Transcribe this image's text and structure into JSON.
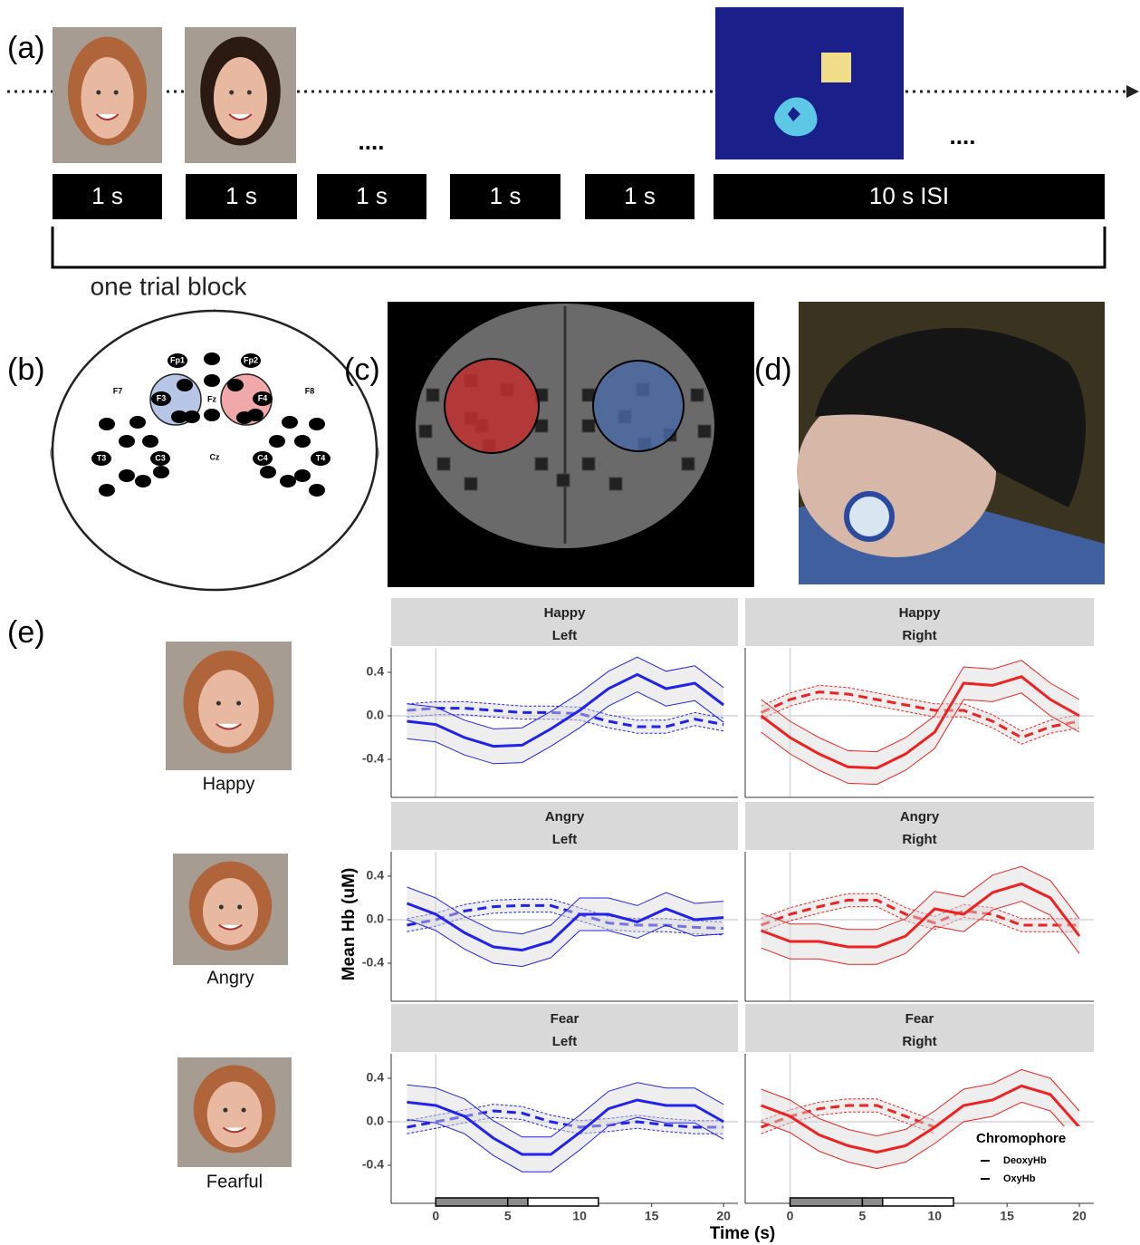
{
  "panel_a": {
    "label": "(a)",
    "durations": [
      "1 s",
      "1 s",
      "1 s",
      "1 s",
      "1 s",
      "10 s ISI"
    ],
    "ellipsis": [
      "....",
      "...."
    ],
    "block_label": "one trial block"
  },
  "panel_b": {
    "label": "(b)",
    "electrodes": [
      "Fp1",
      "Fp2",
      "F7",
      "F3",
      "Fz",
      "F4",
      "F8",
      "T3",
      "C3",
      "Cz",
      "C4",
      "T4"
    ]
  },
  "panel_c": {
    "label": "(c)"
  },
  "panel_d": {
    "label": "(d)"
  },
  "panel_e": {
    "label": "(e)",
    "faces": [
      "Happy",
      "Angry",
      "Fearful"
    ],
    "xlabel": "Time (s)",
    "ylabel": "Mean Hb (uM)"
  },
  "chart_data": [
    {
      "type": "line",
      "facet_row": "Happy",
      "facet_col": "Left",
      "x": [
        -2,
        0,
        2,
        4,
        6,
        8,
        10,
        12,
        14,
        16,
        18,
        20
      ],
      "xlim": [
        -3.1,
        21
      ],
      "ylim": [
        -0.75,
        0.625
      ],
      "yticks": [
        0.4,
        {
          "value": 0,
          "label": "0.0"
        },
        -0.4
      ],
      "series": [
        {
          "color": "#2222ee",
          "linestyle": "dashed",
          "error": 0.06,
          "values": [
            0.05,
            0.07,
            0.07,
            0.05,
            0.03,
            0.03,
            0.02,
            -0.05,
            -0.1,
            -0.1,
            -0.03,
            -0.08
          ]
        },
        {
          "color": "#2222ee",
          "linestyle": "solid",
          "error": 0.16,
          "values": [
            -0.05,
            -0.08,
            -0.2,
            -0.28,
            -0.27,
            -0.12,
            0.05,
            0.25,
            0.38,
            0.25,
            0.3,
            0.1
          ]
        }
      ]
    },
    {
      "type": "line",
      "facet_row": "Happy",
      "facet_col": "Right",
      "x": [
        -2,
        0,
        2,
        4,
        6,
        8,
        10,
        12,
        14,
        16,
        18,
        20
      ],
      "xlim": [
        -3.1,
        21
      ],
      "ylim": [
        -0.75,
        0.625
      ],
      "series": [
        {
          "color": "#ee2222",
          "linestyle": "dashed",
          "error": 0.06,
          "values": [
            0.03,
            0.15,
            0.22,
            0.2,
            0.15,
            0.1,
            0.05,
            0.05,
            -0.05,
            -0.2,
            -0.1,
            -0.05
          ]
        },
        {
          "color": "#ee2222",
          "linestyle": "solid",
          "error": 0.15,
          "values": [
            0,
            -0.2,
            -0.35,
            -0.47,
            -0.48,
            -0.35,
            -0.15,
            0.3,
            0.28,
            0.36,
            0.15,
            0
          ]
        }
      ]
    },
    {
      "type": "line",
      "facet_row": "Angry",
      "facet_col": "Left",
      "x": [
        -2,
        0,
        2,
        4,
        6,
        8,
        10,
        12,
        14,
        16,
        18,
        20
      ],
      "xlim": [
        -3.1,
        21
      ],
      "ylim": [
        -0.75,
        0.625
      ],
      "yticks": [
        0.4,
        {
          "value": 0,
          "label": "0.0"
        },
        -0.4
      ],
      "series": [
        {
          "color": "#2222ee",
          "linestyle": "dashed",
          "error": 0.06,
          "values": [
            -0.05,
            0,
            0.08,
            0.12,
            0.13,
            0.13,
            0.05,
            -0.03,
            -0.05,
            -0.05,
            -0.07,
            -0.08
          ]
        },
        {
          "color": "#2222ee",
          "linestyle": "solid",
          "error": 0.15,
          "values": [
            0.15,
            0.05,
            -0.12,
            -0.25,
            -0.28,
            -0.2,
            0.05,
            0.05,
            -0.02,
            0.1,
            0,
            0.02
          ]
        }
      ]
    },
    {
      "type": "line",
      "facet_row": "Angry",
      "facet_col": "Right",
      "x": [
        -2,
        0,
        2,
        4,
        6,
        8,
        10,
        12,
        14,
        16,
        18,
        20
      ],
      "xlim": [
        -3.1,
        21
      ],
      "ylim": [
        -0.75,
        0.625
      ],
      "series": [
        {
          "color": "#ee2222",
          "linestyle": "dashed",
          "error": 0.06,
          "values": [
            -0.05,
            0.05,
            0.12,
            0.18,
            0.18,
            0.05,
            -0.03,
            0.08,
            0.05,
            -0.05,
            -0.05,
            -0.05
          ]
        },
        {
          "color": "#ee2222",
          "linestyle": "solid",
          "error": 0.16,
          "values": [
            -0.1,
            -0.2,
            -0.2,
            -0.25,
            -0.25,
            -0.15,
            0.1,
            0.05,
            0.25,
            0.33,
            0.2,
            -0.15
          ]
        }
      ]
    },
    {
      "type": "line",
      "facet_row": "Fear",
      "facet_col": "Left",
      "x": [
        -2,
        0,
        2,
        4,
        6,
        8,
        10,
        12,
        14,
        16,
        18,
        20
      ],
      "xlim": [
        -3.1,
        21
      ],
      "ylim": [
        -0.75,
        0.625
      ],
      "yticks": [
        0.4,
        {
          "value": 0,
          "label": "0.0"
        },
        -0.4
      ],
      "xticks": [
        0,
        5,
        10,
        15,
        20
      ],
      "stimulus_blocks": [
        {
          "start": 0,
          "end": 5,
          "color": "#8c8c8c"
        },
        {
          "start": 5,
          "end": 6.4,
          "color": "#8c8c8c"
        },
        {
          "start": 6.4,
          "end": 11.3,
          "color": "#ffffff"
        }
      ],
      "series": [
        {
          "color": "#2222ee",
          "linestyle": "dashed",
          "error": 0.06,
          "values": [
            -0.05,
            0,
            0.05,
            0.1,
            0.08,
            0,
            -0.05,
            -0.03,
            0,
            -0.03,
            -0.05,
            -0.05
          ]
        },
        {
          "color": "#2222ee",
          "linestyle": "solid",
          "error": 0.16,
          "values": [
            0.18,
            0.15,
            0.05,
            -0.15,
            -0.3,
            -0.3,
            -0.1,
            0.12,
            0.2,
            0.15,
            0.15,
            0
          ]
        }
      ]
    },
    {
      "type": "line",
      "facet_row": "Fear",
      "facet_col": "Right",
      "x": [
        -2,
        0,
        2,
        4,
        6,
        8,
        10,
        12,
        14,
        16,
        18,
        20
      ],
      "xlim": [
        -3.1,
        21
      ],
      "ylim": [
        -0.75,
        0.625
      ],
      "xticks": [
        0,
        5,
        10,
        15,
        20
      ],
      "stimulus_blocks": [
        {
          "start": 0,
          "end": 5,
          "color": "#8c8c8c"
        },
        {
          "start": 5,
          "end": 6.4,
          "color": "#8c8c8c"
        },
        {
          "start": 6.4,
          "end": 11.3,
          "color": "#ffffff"
        }
      ],
      "legend": "bottom-right",
      "legend_title": "Chromophore",
      "series": [
        {
          "name": "DeoxyHb",
          "color": "#ee2222",
          "linestyle": "dashed",
          "error": 0.06,
          "values": [
            -0.05,
            0.05,
            0.12,
            0.15,
            0.15,
            0.05,
            -0.05,
            null,
            null,
            null,
            null,
            null
          ]
        },
        {
          "name": "OxyHb",
          "color": "#ee2222",
          "linestyle": "solid",
          "error": 0.15,
          "values": [
            0.15,
            0.05,
            -0.12,
            -0.22,
            -0.28,
            -0.22,
            -0.05,
            0.15,
            0.2,
            0.33,
            0.25,
            -0.05
          ]
        }
      ]
    }
  ]
}
